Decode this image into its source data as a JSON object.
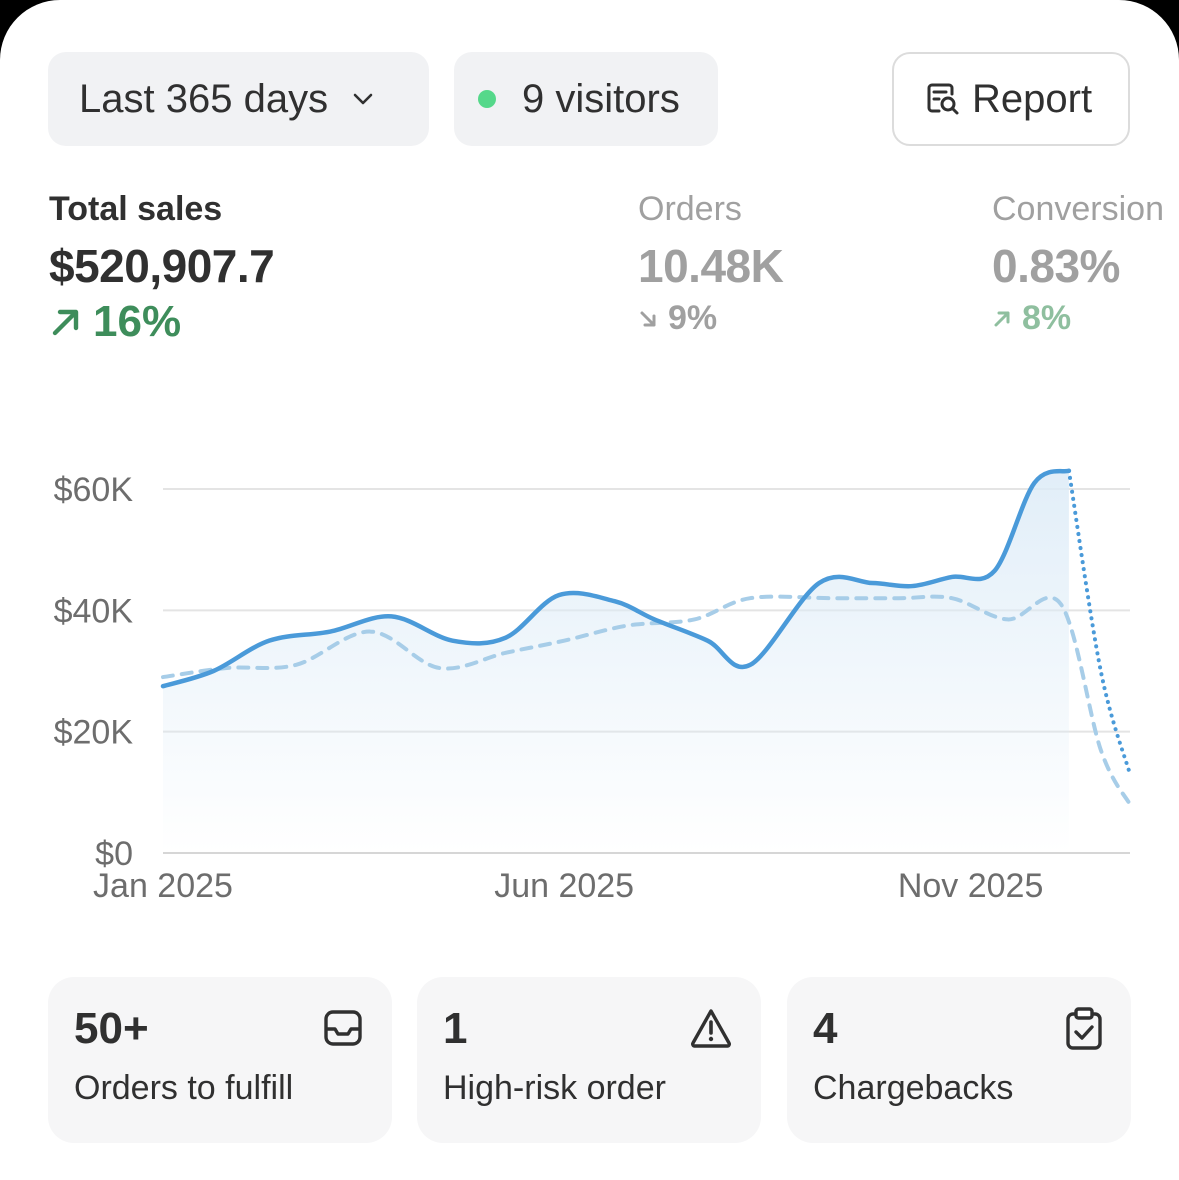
{
  "toolbar": {
    "range_label": "Last 365 days",
    "visitors_label": "9 visitors",
    "report_label": "Report"
  },
  "metrics": [
    {
      "label": "Total sales",
      "value": "$520,907.7",
      "delta": "16%",
      "direction": "up",
      "color": "#3e8d5b"
    },
    {
      "label": "Orders",
      "value": "10.48K",
      "delta": "9%",
      "direction": "down",
      "color": "#a0a0a0"
    },
    {
      "label": "Conversion",
      "value": "0.83%",
      "delta": "8%",
      "direction": "up",
      "color": "#8fbf9f"
    }
  ],
  "chart_data": {
    "type": "line",
    "y_ticks": [
      "$0",
      "$20K",
      "$40K",
      "$60K"
    ],
    "x_ticks": [
      "Jan 2025",
      "Jun 2025",
      "Nov 2025"
    ],
    "ylim": [
      0,
      60000
    ],
    "series": [
      {
        "style": "solid",
        "color": "#4a9ad9",
        "x": [
          "2025-01-01",
          "2025-01-20",
          "2025-02-10",
          "2025-03-05",
          "2025-03-28",
          "2025-04-20",
          "2025-05-10",
          "2025-05-30",
          "2025-06-20",
          "2025-07-05",
          "2025-07-25",
          "2025-08-10",
          "2025-09-05",
          "2025-09-25",
          "2025-10-10",
          "2025-10-25",
          "2025-11-10",
          "2025-11-25",
          "2025-12-08"
        ],
        "values": [
          27500,
          30000,
          35000,
          36500,
          39000,
          35000,
          35500,
          42500,
          41500,
          38500,
          35000,
          31000,
          44500,
          44500,
          44000,
          45500,
          46500,
          61000,
          63000
        ]
      },
      {
        "style": "dotted",
        "color": "#4a9ad9",
        "x": [
          "2025-12-08",
          "2025-12-20",
          "2025-12-31"
        ],
        "values": [
          63000,
          30000,
          13000
        ]
      },
      {
        "style": "dashed",
        "color": "#a7cde8",
        "x": [
          "2025-01-01",
          "2025-01-25",
          "2025-02-20",
          "2025-03-20",
          "2025-04-15",
          "2025-05-10",
          "2025-06-01",
          "2025-06-25",
          "2025-07-20",
          "2025-08-10",
          "2025-09-10",
          "2025-10-05",
          "2025-10-25",
          "2025-11-15",
          "2025-12-05",
          "2025-12-20",
          "2025-12-31"
        ],
        "values": [
          29000,
          30500,
          31000,
          36500,
          30500,
          33000,
          35000,
          37500,
          38500,
          42000,
          42000,
          42000,
          42000,
          38500,
          41000,
          17000,
          8000
        ]
      }
    ],
    "grid": true,
    "area_fill": true
  },
  "tiles": [
    {
      "num": "50+",
      "label": "Orders to fulfill",
      "icon": "inbox-icon"
    },
    {
      "num": "1",
      "label": "High-risk order",
      "icon": "warning-icon"
    },
    {
      "num": "4",
      "label": "Chargebacks",
      "icon": "clipboard-check-icon"
    }
  ]
}
